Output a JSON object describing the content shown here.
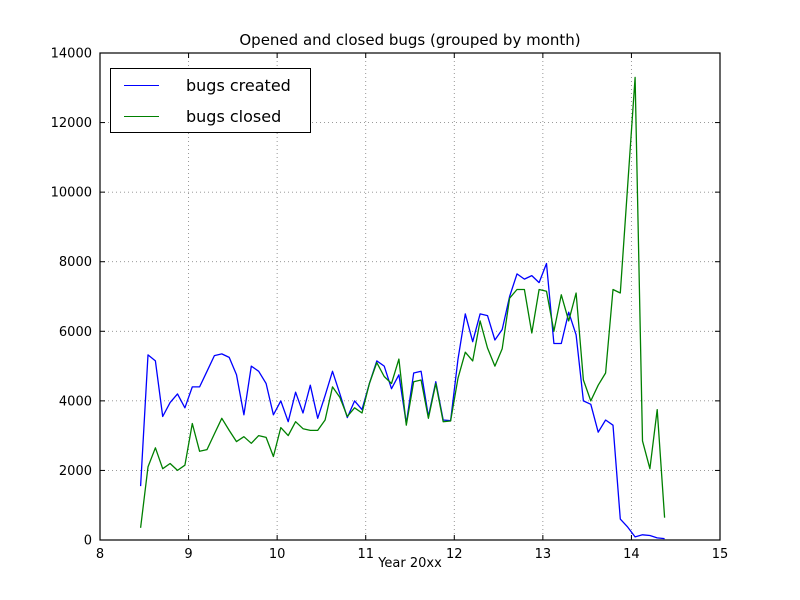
{
  "chart_data": {
    "type": "line",
    "title": "Opened and closed bugs (grouped by month)",
    "xlabel": "Year 20xx",
    "ylabel": "",
    "grid": true,
    "legend_position": "upper left",
    "x_axis": {
      "min": 8,
      "max": 15,
      "ticks": [
        8,
        9,
        10,
        11,
        12,
        13,
        14,
        15
      ]
    },
    "y_axis": {
      "min": 0,
      "max": 14000,
      "ticks": [
        0,
        2000,
        4000,
        6000,
        8000,
        10000,
        12000,
        14000
      ]
    },
    "x_start": 8.4583,
    "x_step": 0.08333,
    "series": [
      {
        "name": "bugs created",
        "color": "#0000ff",
        "values": [
          1550,
          5320,
          5150,
          3550,
          3950,
          4200,
          3800,
          4400,
          4400,
          4850,
          5300,
          5350,
          5250,
          4750,
          3600,
          5000,
          4850,
          4500,
          3600,
          4000,
          3400,
          4250,
          3650,
          4450,
          3500,
          4150,
          4850,
          4200,
          3520,
          4000,
          3750,
          4500,
          5150,
          5000,
          4350,
          4750,
          3350,
          4800,
          4850,
          3550,
          4550,
          3450,
          3430,
          5200,
          6500,
          5700,
          6500,
          6450,
          5750,
          6050,
          7000,
          7650,
          7500,
          7600,
          7400,
          7950,
          5650,
          5650,
          6550,
          5900,
          4000,
          3900,
          3100,
          3450,
          3300,
          600,
          370,
          90,
          150,
          130,
          60,
          40
        ]
      },
      {
        "name": "bugs closed",
        "color": "#008000",
        "values": [
          350,
          2100,
          2650,
          2050,
          2200,
          2000,
          2150,
          3350,
          2550,
          2600,
          3050,
          3500,
          3150,
          2830,
          2970,
          2780,
          3000,
          2950,
          2400,
          3230,
          3000,
          3400,
          3200,
          3150,
          3150,
          3450,
          4400,
          4100,
          3550,
          3800,
          3650,
          4500,
          5100,
          4700,
          4500,
          5200,
          3300,
          4550,
          4600,
          3500,
          4500,
          3400,
          3420,
          4650,
          5400,
          5150,
          6300,
          5520,
          5000,
          5500,
          6950,
          7200,
          7200,
          5950,
          7200,
          7150,
          6000,
          7050,
          6300,
          7100,
          4600,
          4000,
          4450,
          4800,
          7200,
          7100,
          10200,
          13300,
          2850,
          2050,
          3750,
          640
        ]
      }
    ]
  },
  "legend": {
    "entries": [
      {
        "label": "bugs created",
        "color": "#0000ff"
      },
      {
        "label": "bugs closed",
        "color": "#008000"
      }
    ]
  }
}
